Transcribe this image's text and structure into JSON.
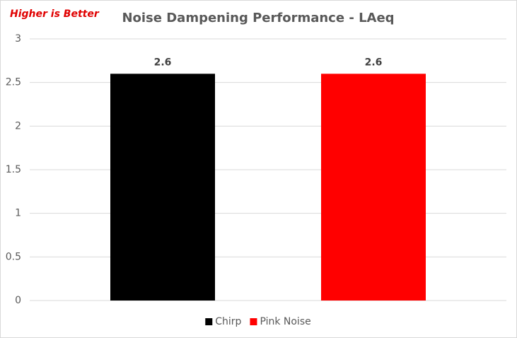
{
  "chart_data": {
    "type": "bar",
    "title": "Noise Dampening Performance - LAeq",
    "annotation": "Higher is Better",
    "categories": [
      null
    ],
    "series": [
      {
        "name": "Chirp",
        "color": "#000000",
        "values": [
          2.6
        ]
      },
      {
        "name": "Pink Noise",
        "color": "#ff0000",
        "values": [
          2.6
        ]
      }
    ],
    "ylim": [
      0,
      3
    ],
    "yticks": [
      0,
      0.5,
      1,
      1.5,
      2,
      2.5,
      3
    ],
    "grid": true,
    "legend": "bottom"
  }
}
